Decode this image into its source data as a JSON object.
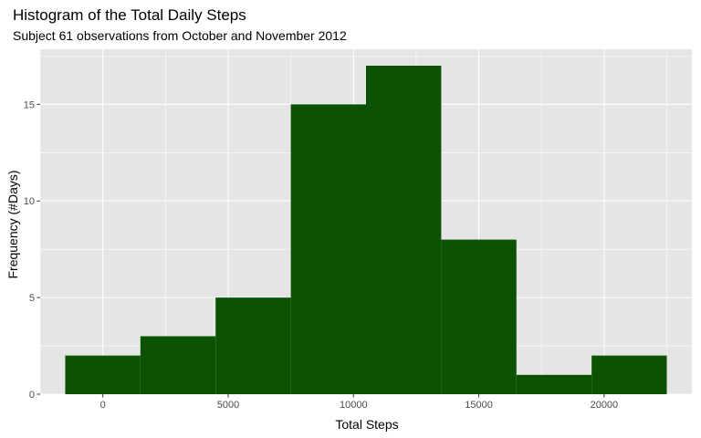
{
  "chart_data": {
    "type": "bar",
    "title": "Histogram of the Total Daily Steps",
    "subtitle": "Subject 61 observations from October and November 2012",
    "xlabel": "Total Steps",
    "ylabel": "Frequency (#Days)",
    "bins": [
      {
        "x_start": -1500,
        "x_end": 1500,
        "value": 2
      },
      {
        "x_start": 1500,
        "x_end": 4500,
        "value": 3
      },
      {
        "x_start": 4500,
        "x_end": 7500,
        "value": 5
      },
      {
        "x_start": 7500,
        "x_end": 10500,
        "value": 15
      },
      {
        "x_start": 10500,
        "x_end": 13500,
        "value": 17
      },
      {
        "x_start": 13500,
        "x_end": 16500,
        "value": 8
      },
      {
        "x_start": 16500,
        "x_end": 19500,
        "value": 1
      },
      {
        "x_start": 19500,
        "x_end": 22500,
        "value": 2
      }
    ],
    "x_ticks": [
      {
        "value": 0,
        "label": "0"
      },
      {
        "value": 5000,
        "label": "5000"
      },
      {
        "value": 10000,
        "label": "10000"
      },
      {
        "value": 15000,
        "label": "15000"
      },
      {
        "value": 20000,
        "label": "20000"
      }
    ],
    "y_ticks": [
      {
        "value": 0,
        "label": "0"
      },
      {
        "value": 5,
        "label": "5"
      },
      {
        "value": 10,
        "label": "10"
      },
      {
        "value": 15,
        "label": "15"
      }
    ],
    "xlim": [
      -2500,
      23500
    ],
    "ylim": [
      0,
      17.85
    ],
    "grid": true,
    "colors": {
      "bar": "#0b5302",
      "panel": "#e5e5e5",
      "grid": "#ffffff"
    }
  }
}
